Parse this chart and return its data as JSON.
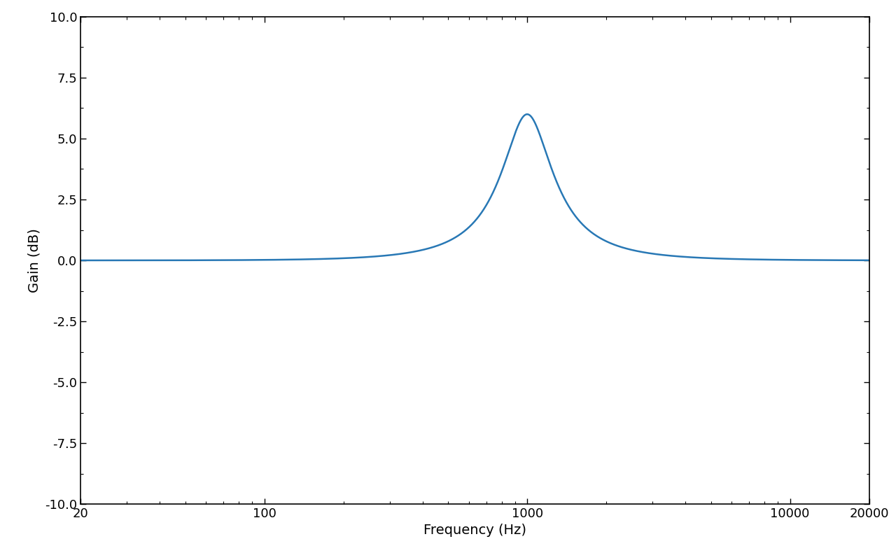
{
  "xlabel": "Frequency (Hz)",
  "ylabel": "Gain (dB)",
  "xlim": [
    20,
    20000
  ],
  "ylim": [
    -10.0,
    10.0
  ],
  "yticks": [
    -10.0,
    -7.5,
    -5.0,
    -2.5,
    0.0,
    2.5,
    5.0,
    7.5,
    10.0
  ],
  "xticks": [
    20,
    100,
    1000,
    10000,
    20000
  ],
  "xticklabels": [
    "20",
    "100",
    "1000",
    "10000",
    "20000"
  ],
  "line_color": "#2878b5",
  "line_width": 1.8,
  "resonance_freq": 1000,
  "resonance_gain_db": 6.0,
  "resonance_q": 2.5,
  "background_color": "#ffffff",
  "spine_color": "#000000",
  "label_fontsize": 14,
  "tick_fontsize": 13
}
